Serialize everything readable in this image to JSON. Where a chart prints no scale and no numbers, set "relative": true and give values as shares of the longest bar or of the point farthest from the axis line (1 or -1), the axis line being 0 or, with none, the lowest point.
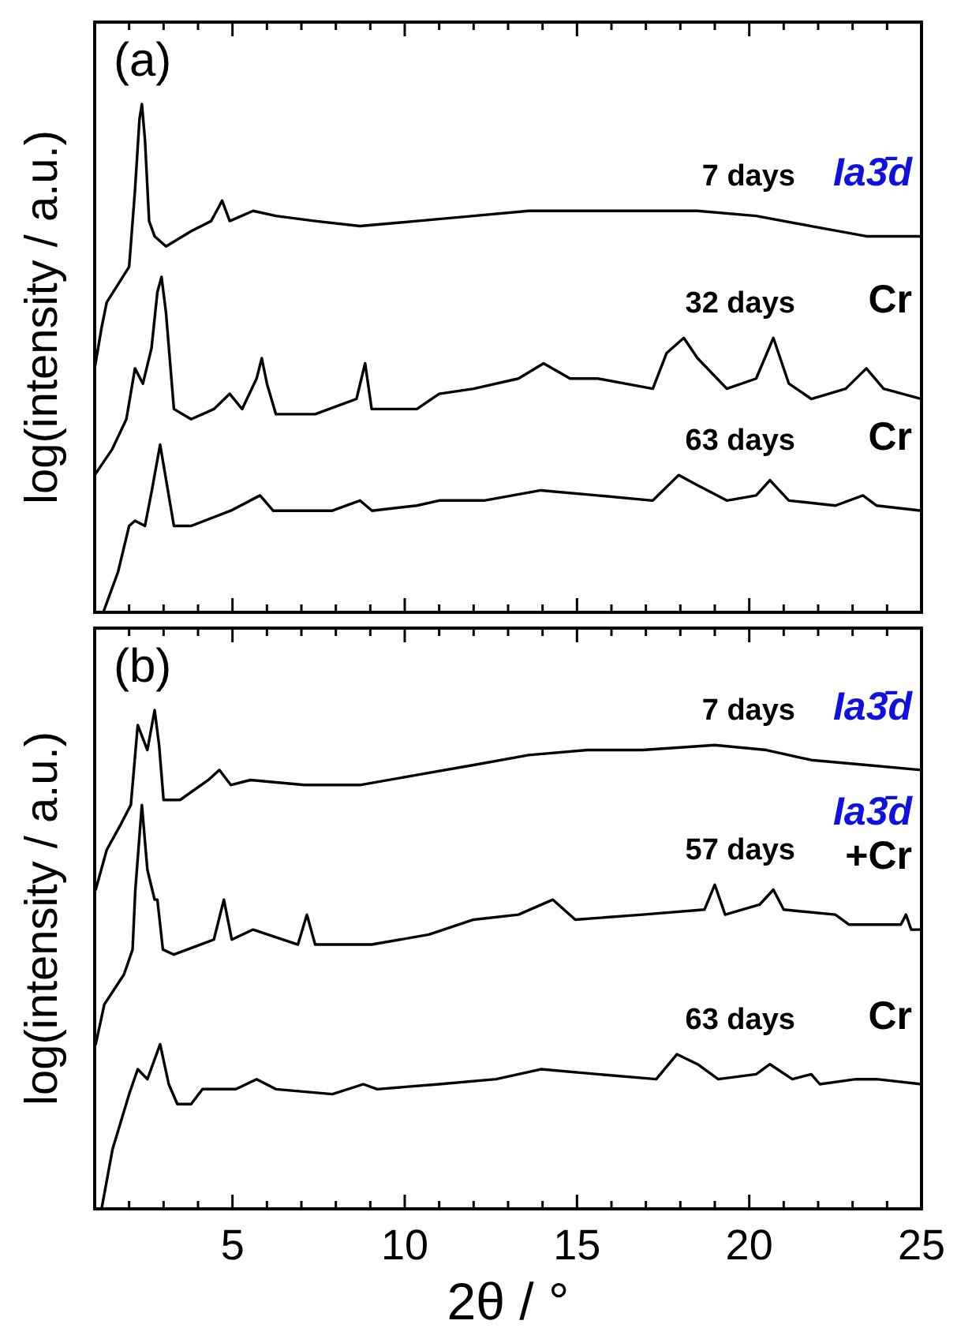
{
  "chart_data": [
    {
      "type": "line",
      "relative": true,
      "ylabel": "log(intensity / a.u.)",
      "xlim": [
        1,
        25
      ],
      "xticks": [
        {
          "value": 2,
          "label": null
        },
        {
          "value": 3,
          "label": null
        },
        {
          "value": 4,
          "label": null
        },
        {
          "value": 5,
          "label": null
        },
        {
          "value": 6,
          "label": null
        },
        {
          "value": 7,
          "label": null
        },
        {
          "value": 8,
          "label": null
        },
        {
          "value": 9,
          "label": null
        },
        {
          "value": 10,
          "label": null
        },
        {
          "value": 11,
          "label": null
        },
        {
          "value": 12,
          "label": null
        },
        {
          "value": 13,
          "label": null
        },
        {
          "value": 14,
          "label": null
        },
        {
          "value": 15,
          "label": null
        },
        {
          "value": 16,
          "label": null
        },
        {
          "value": 17,
          "label": null
        },
        {
          "value": 18,
          "label": null
        },
        {
          "value": 19,
          "label": null
        },
        {
          "value": 20,
          "label": null
        },
        {
          "value": 21,
          "label": null
        },
        {
          "value": 22,
          "label": null
        },
        {
          "value": 23,
          "label": null
        },
        {
          "value": 24,
          "label": null
        },
        {
          "value": 25,
          "label": null
        }
      ],
      "tick_labels": false,
      "annotations": [
        "(a)",
        "Ia3̄d",
        "Cr",
        "Cr"
      ],
      "series": [
        {
          "name": "7 days",
          "color": "#000000",
          "x": [
            1.0,
            1.2,
            1.35,
            2.0,
            2.17,
            2.3,
            2.37,
            2.46,
            2.58,
            2.74,
            3.07,
            3.8,
            4.38,
            4.54,
            4.7,
            4.92,
            5.6,
            6.26,
            7.4,
            8.7,
            10.35,
            12,
            13.6,
            15.3,
            16.9,
            18.5,
            20.2,
            21.8,
            23.4,
            25
          ],
          "values": [
            0.48,
            0.56,
            0.61,
            0.68,
            0.83,
            0.97,
            1.0,
            0.93,
            0.77,
            0.74,
            0.72,
            0.75,
            0.77,
            0.79,
            0.81,
            0.77,
            0.79,
            0.78,
            0.77,
            0.76,
            0.77,
            0.78,
            0.79,
            0.79,
            0.79,
            0.79,
            0.78,
            0.76,
            0.74,
            0.74
          ]
        },
        {
          "name": "32 days",
          "color": "#000000",
          "x": [
            1.0,
            1.5,
            1.92,
            2.17,
            2.4,
            2.65,
            2.82,
            2.94,
            3.07,
            3.3,
            3.8,
            4.46,
            4.92,
            5.28,
            5.7,
            5.85,
            6.0,
            6.26,
            7.4,
            8.6,
            8.85,
            9.04,
            10.35,
            11,
            12,
            13.3,
            14.03,
            14.8,
            15.6,
            17.2,
            17.6,
            18.1,
            18.5,
            19.35,
            20.2,
            20.7,
            21.15,
            21.8,
            22.8,
            23.4,
            23.9,
            25
          ],
          "values": [
            0.27,
            0.32,
            0.38,
            0.48,
            0.45,
            0.52,
            0.63,
            0.66,
            0.59,
            0.4,
            0.38,
            0.4,
            0.43,
            0.4,
            0.46,
            0.5,
            0.45,
            0.39,
            0.39,
            0.42,
            0.49,
            0.4,
            0.4,
            0.43,
            0.44,
            0.46,
            0.49,
            0.46,
            0.46,
            0.44,
            0.51,
            0.54,
            0.5,
            0.44,
            0.46,
            0.54,
            0.45,
            0.42,
            0.44,
            0.48,
            0.44,
            0.42
          ]
        },
        {
          "name": "63 days",
          "color": "#000000",
          "x": [
            1.25,
            1.68,
            2.0,
            2.17,
            2.46,
            2.66,
            2.9,
            3.1,
            3.3,
            3.8,
            4.95,
            5.8,
            6.18,
            7.9,
            8.7,
            9.05,
            10.35,
            11,
            12.3,
            13.95,
            15.6,
            17.2,
            17.95,
            18.5,
            19.35,
            20.2,
            20.6,
            21.15,
            22.5,
            23.3,
            23.7,
            25
          ],
          "values": [
            0.0,
            0.08,
            0.17,
            0.18,
            0.17,
            0.24,
            0.33,
            0.25,
            0.17,
            0.17,
            0.2,
            0.23,
            0.2,
            0.2,
            0.22,
            0.2,
            0.21,
            0.22,
            0.22,
            0.24,
            0.23,
            0.22,
            0.27,
            0.25,
            0.22,
            0.23,
            0.26,
            0.22,
            0.21,
            0.23,
            0.21,
            0.2
          ]
        }
      ]
    },
    {
      "type": "line",
      "relative": true,
      "ylabel": "log(intensity / a.u.)",
      "xlabel": "2θ / °",
      "xlim": [
        1,
        25
      ],
      "xticks": [
        {
          "value": 2,
          "label": null
        },
        {
          "value": 3,
          "label": null
        },
        {
          "value": 4,
          "label": null
        },
        5,
        {
          "value": 6,
          "label": null
        },
        {
          "value": 7,
          "label": null
        },
        {
          "value": 8,
          "label": null
        },
        {
          "value": 9,
          "label": null
        },
        10,
        {
          "value": 11,
          "label": null
        },
        {
          "value": 12,
          "label": null
        },
        {
          "value": 13,
          "label": null
        },
        {
          "value": 14,
          "label": null
        },
        15,
        {
          "value": 16,
          "label": null
        },
        {
          "value": 17,
          "label": null
        },
        {
          "value": 18,
          "label": null
        },
        {
          "value": 19,
          "label": null
        },
        20,
        {
          "value": 21,
          "label": null
        },
        {
          "value": 22,
          "label": null
        },
        {
          "value": 23,
          "label": null
        },
        {
          "value": 24,
          "label": null
        },
        25
      ],
      "tick_labels": "x",
      "annotations": [
        "(b)",
        "Ia3̄d",
        "Ia3̄d\n+Cr",
        "Cr"
      ],
      "series": [
        {
          "name": "7 days",
          "color": "#000000",
          "x": [
            1.03,
            1.35,
            1.75,
            2.05,
            2.25,
            2.53,
            2.74,
            2.87,
            3.0,
            3.48,
            4.3,
            4.62,
            4.95,
            5.52,
            7.08,
            8.7,
            10.35,
            12,
            13.6,
            15.3,
            16.9,
            19,
            20.5,
            21.8,
            23.4,
            25
          ],
          "values": [
            0.64,
            0.72,
            0.77,
            0.81,
            0.97,
            0.92,
            1.0,
            0.93,
            0.82,
            0.82,
            0.86,
            0.88,
            0.85,
            0.86,
            0.85,
            0.85,
            0.87,
            0.89,
            0.91,
            0.92,
            0.92,
            0.93,
            0.92,
            0.9,
            0.89,
            0.88
          ]
        },
        {
          "name": "57 days",
          "color": "#000000",
          "x": [
            1.03,
            1.28,
            1.85,
            2.1,
            2.18,
            2.37,
            2.53,
            2.74,
            2.82,
            2.98,
            3.3,
            4.46,
            4.75,
            4.98,
            5.6,
            6.9,
            7.16,
            7.4,
            9.04,
            10.7,
            12,
            13.3,
            14.3,
            14.95,
            16.9,
            18.7,
            19.0,
            19.3,
            20.3,
            20.7,
            21.0,
            22.5,
            22.9,
            24.4,
            24.55,
            24.7,
            25
          ],
          "values": [
            0.33,
            0.41,
            0.47,
            0.52,
            0.64,
            0.81,
            0.68,
            0.62,
            0.62,
            0.52,
            0.51,
            0.54,
            0.62,
            0.54,
            0.56,
            0.53,
            0.59,
            0.53,
            0.53,
            0.55,
            0.58,
            0.59,
            0.62,
            0.58,
            0.59,
            0.6,
            0.65,
            0.59,
            0.61,
            0.64,
            0.6,
            0.59,
            0.57,
            0.57,
            0.59,
            0.56,
            0.56
          ]
        },
        {
          "name": "63 days",
          "color": "#000000",
          "x": [
            1.2,
            1.52,
            2.0,
            2.25,
            2.53,
            2.9,
            3.15,
            3.4,
            3.8,
            4.13,
            5.1,
            5.7,
            6.26,
            7.9,
            8.8,
            9.2,
            11,
            12.65,
            13.95,
            15.6,
            17.3,
            17.9,
            18.5,
            19.1,
            20.2,
            20.6,
            21.25,
            21.8,
            22.05,
            23.1,
            23.7,
            25
          ],
          "values": [
            0.0,
            0.12,
            0.23,
            0.28,
            0.26,
            0.33,
            0.25,
            0.21,
            0.21,
            0.24,
            0.24,
            0.26,
            0.24,
            0.23,
            0.25,
            0.24,
            0.25,
            0.26,
            0.28,
            0.27,
            0.26,
            0.31,
            0.29,
            0.26,
            0.27,
            0.29,
            0.26,
            0.27,
            0.25,
            0.26,
            0.26,
            0.25
          ]
        }
      ]
    }
  ]
}
